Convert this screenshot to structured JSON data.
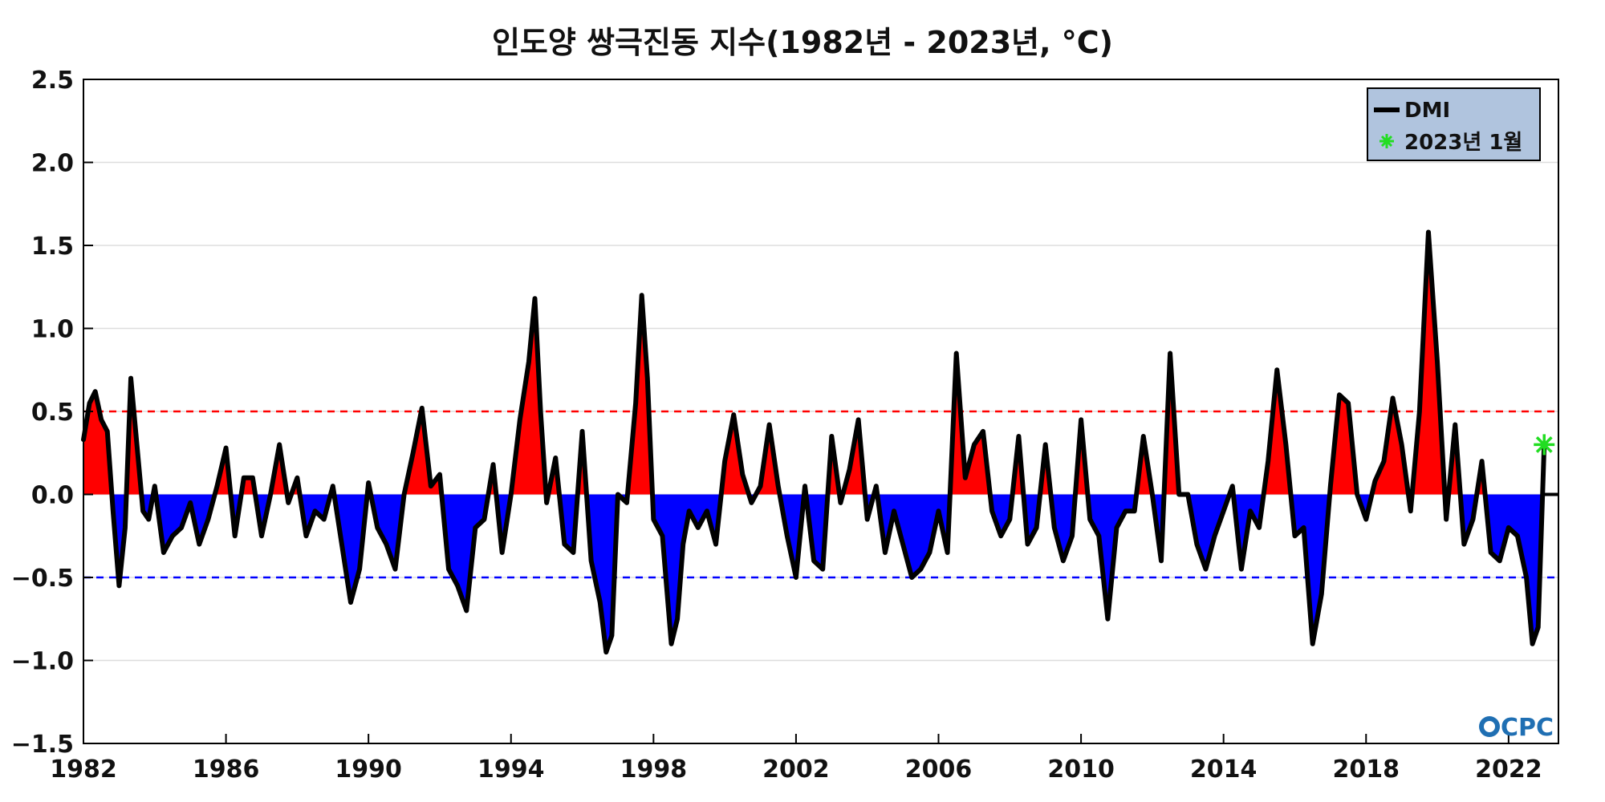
{
  "chart_data": {
    "type": "area",
    "title": "인도양 쌍극진동 지수(1982년 - 2023년, °C)",
    "xlabel": "",
    "ylabel": "",
    "xlim": [
      1982.0,
      2023.4
    ],
    "ylim": [
      -1.5,
      2.5
    ],
    "xticks": [
      "1982",
      "1986",
      "1990",
      "1994",
      "1998",
      "2002",
      "2006",
      "2010",
      "2014",
      "2018",
      "2022"
    ],
    "yticks": [
      "−1.5",
      "−1.0",
      "−0.5",
      "0.0",
      "0.5",
      "1.0",
      "1.5",
      "2.0",
      "2.5"
    ],
    "grid": true,
    "thresholds": [
      0.5,
      -0.5
    ],
    "colors": {
      "positive": "#ff0000",
      "negative": "#0000ff",
      "line": "#000000",
      "marker": "#22dd22",
      "legend_bg": "#b0c4de"
    },
    "legend": {
      "position": "top-right",
      "items": [
        "DMI",
        "2023년 1월"
      ]
    },
    "series": [
      {
        "name": "DMI",
        "x": [
          1982.0,
          1982.17,
          1982.33,
          1982.5,
          1982.67,
          1982.83,
          1983.0,
          1983.17,
          1983.33,
          1983.5,
          1983.67,
          1983.83,
          1984.0,
          1984.25,
          1984.5,
          1984.75,
          1985.0,
          1985.25,
          1985.5,
          1985.75,
          1986.0,
          1986.25,
          1986.5,
          1986.75,
          1987.0,
          1987.25,
          1987.5,
          1987.75,
          1988.0,
          1988.25,
          1988.5,
          1988.75,
          1989.0,
          1989.25,
          1989.5,
          1989.75,
          1990.0,
          1990.25,
          1990.5,
          1990.75,
          1991.0,
          1991.25,
          1991.5,
          1991.75,
          1992.0,
          1992.25,
          1992.5,
          1992.75,
          1993.0,
          1993.25,
          1993.5,
          1993.75,
          1994.0,
          1994.25,
          1994.5,
          1994.67,
          1994.83,
          1995.0,
          1995.25,
          1995.5,
          1995.75,
          1996.0,
          1996.25,
          1996.5,
          1996.67,
          1996.83,
          1997.0,
          1997.25,
          1997.5,
          1997.67,
          1997.83,
          1998.0,
          1998.25,
          1998.5,
          1998.67,
          1998.83,
          1999.0,
          1999.25,
          1999.5,
          1999.75,
          2000.0,
          2000.25,
          2000.5,
          2000.75,
          2001.0,
          2001.25,
          2001.5,
          2001.75,
          2002.0,
          2002.25,
          2002.5,
          2002.75,
          2003.0,
          2003.25,
          2003.5,
          2003.75,
          2004.0,
          2004.25,
          2004.5,
          2004.75,
          2005.0,
          2005.25,
          2005.5,
          2005.75,
          2006.0,
          2006.25,
          2006.5,
          2006.75,
          2007.0,
          2007.25,
          2007.5,
          2007.75,
          2008.0,
          2008.25,
          2008.5,
          2008.75,
          2009.0,
          2009.25,
          2009.5,
          2009.75,
          2010.0,
          2010.25,
          2010.5,
          2010.75,
          2011.0,
          2011.25,
          2011.5,
          2011.75,
          2012.0,
          2012.25,
          2012.5,
          2012.75,
          2013.0,
          2013.25,
          2013.5,
          2013.75,
          2014.0,
          2014.25,
          2014.5,
          2014.75,
          2015.0,
          2015.25,
          2015.5,
          2015.75,
          2016.0,
          2016.25,
          2016.5,
          2016.75,
          2017.0,
          2017.25,
          2017.5,
          2017.75,
          2018.0,
          2018.25,
          2018.5,
          2018.75,
          2019.0,
          2019.25,
          2019.5,
          2019.75,
          2020.0,
          2020.25,
          2020.5,
          2020.75,
          2021.0,
          2021.25,
          2021.5,
          2021.75,
          2022.0,
          2022.25,
          2022.5,
          2022.67,
          2022.83,
          2023.0
        ],
        "values": [
          0.33,
          0.55,
          0.62,
          0.45,
          0.38,
          -0.1,
          -0.55,
          -0.2,
          0.7,
          0.3,
          -0.1,
          -0.15,
          0.05,
          -0.35,
          -0.25,
          -0.2,
          -0.05,
          -0.3,
          -0.15,
          0.05,
          0.28,
          -0.25,
          0.1,
          0.1,
          -0.25,
          0.0,
          0.3,
          -0.05,
          0.1,
          -0.25,
          -0.1,
          -0.15,
          0.05,
          -0.3,
          -0.65,
          -0.45,
          0.07,
          -0.2,
          -0.3,
          -0.45,
          0.0,
          0.25,
          0.52,
          0.05,
          0.12,
          -0.45,
          -0.55,
          -0.7,
          -0.2,
          -0.15,
          0.18,
          -0.35,
          0.0,
          0.45,
          0.8,
          1.18,
          0.5,
          -0.05,
          0.22,
          -0.3,
          -0.35,
          0.38,
          -0.4,
          -0.65,
          -0.95,
          -0.85,
          0.0,
          -0.05,
          0.55,
          1.2,
          0.7,
          -0.15,
          -0.25,
          -0.9,
          -0.75,
          -0.3,
          -0.1,
          -0.2,
          -0.1,
          -0.3,
          0.2,
          0.48,
          0.12,
          -0.05,
          0.05,
          0.42,
          0.05,
          -0.25,
          -0.5,
          0.05,
          -0.4,
          -0.45,
          0.35,
          -0.05,
          0.15,
          0.45,
          -0.15,
          0.05,
          -0.35,
          -0.1,
          -0.3,
          -0.5,
          -0.45,
          -0.35,
          -0.1,
          -0.35,
          0.85,
          0.1,
          0.3,
          0.38,
          -0.1,
          -0.25,
          -0.15,
          0.35,
          -0.3,
          -0.2,
          0.3,
          -0.2,
          -0.4,
          -0.25,
          0.45,
          -0.15,
          -0.25,
          -0.75,
          -0.2,
          -0.1,
          -0.1,
          0.35,
          0.0,
          -0.4,
          0.85,
          0.0,
          0.0,
          -0.3,
          -0.45,
          -0.25,
          -0.1,
          0.05,
          -0.45,
          -0.1,
          -0.2,
          0.2,
          0.75,
          0.3,
          -0.25,
          -0.2,
          -0.9,
          -0.6,
          0.05,
          0.6,
          0.55,
          0.0,
          -0.15,
          0.08,
          0.2,
          0.58,
          0.3,
          -0.1,
          0.5,
          1.58,
          0.8,
          -0.15,
          0.42,
          -0.3,
          -0.15,
          0.2,
          -0.35,
          -0.4,
          -0.2,
          -0.25,
          -0.5,
          -0.9,
          -0.8,
          0.3
        ]
      }
    ],
    "highlight": {
      "label": "2023년 1월",
      "x": 2023.0,
      "y": 0.3
    }
  }
}
